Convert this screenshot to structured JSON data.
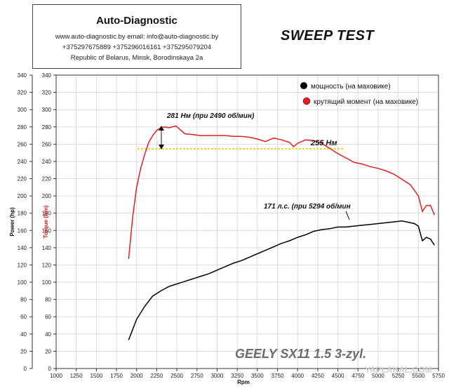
{
  "header": {
    "company": "Auto-Diagnostic",
    "contacts": "www.auto-diagnostic.by     email: info@auto-diagnostic.by",
    "phones": "+375297675889  +375296016161  +375295079204",
    "address": "Republic of Belarus, Minsk, Borodinskaya 2a"
  },
  "test_title": "SWEEP TEST",
  "car_title": "GEELY SX11  1.5 3-zyl.",
  "watermark": "YAPLAKAL.COM",
  "chart_data": {
    "type": "line",
    "xlabel": "Rpm",
    "ylabel_left": "Power (hp)",
    "ylabel_right": "Torque (Nm)",
    "xlim": [
      1000,
      5750
    ],
    "ylim": [
      0,
      340
    ],
    "x_ticks": [
      1000,
      1250,
      1500,
      1750,
      2000,
      2250,
      2500,
      2750,
      3000,
      3250,
      3500,
      3750,
      4000,
      4250,
      4500,
      4750,
      5000,
      5250,
      5500,
      5750
    ],
    "y_ticks": [
      0,
      20,
      40,
      60,
      80,
      100,
      120,
      140,
      160,
      180,
      200,
      220,
      240,
      260,
      280,
      300,
      320,
      340
    ],
    "grid": true,
    "legend_position": "top-right",
    "series": [
      {
        "name": "мощность (на маховике)",
        "color": "#000000",
        "x": [
          1900,
          1950,
          2000,
          2100,
          2200,
          2300,
          2400,
          2500,
          2600,
          2700,
          2800,
          2900,
          3000,
          3100,
          3200,
          3300,
          3400,
          3500,
          3600,
          3700,
          3800,
          3900,
          4000,
          4100,
          4200,
          4300,
          4400,
          4500,
          4600,
          4700,
          4800,
          4900,
          5000,
          5100,
          5200,
          5294,
          5350,
          5450,
          5500,
          5550,
          5600,
          5650,
          5700
        ],
        "y": [
          33,
          45,
          57,
          72,
          84,
          90,
          95,
          98,
          101,
          104,
          107,
          110,
          114,
          118,
          122,
          125,
          129,
          133,
          137,
          141,
          145,
          148,
          152,
          155,
          159,
          161,
          162,
          164,
          164,
          165,
          166,
          167,
          168,
          169,
          170,
          171,
          170,
          168,
          165,
          148,
          152,
          150,
          143
        ]
      },
      {
        "name": "крутящий момент (на маховике)",
        "color": "#e02020",
        "x": [
          1900,
          1950,
          2000,
          2050,
          2100,
          2150,
          2200,
          2250,
          2300,
          2350,
          2400,
          2490,
          2550,
          2600,
          2700,
          2800,
          2900,
          3000,
          3100,
          3200,
          3300,
          3400,
          3500,
          3600,
          3700,
          3800,
          3900,
          3950,
          4000,
          4100,
          4200,
          4300,
          4400,
          4500,
          4600,
          4700,
          4800,
          4900,
          5000,
          5100,
          5200,
          5300,
          5400,
          5500,
          5550,
          5600,
          5650,
          5700
        ],
        "y": [
          127,
          175,
          210,
          232,
          248,
          262,
          270,
          276,
          279,
          280,
          279,
          281,
          276,
          272,
          271,
          270,
          270,
          270,
          270,
          269,
          269,
          268,
          266,
          263,
          267,
          265,
          262,
          257,
          261,
          265,
          264,
          261,
          255,
          249,
          244,
          239,
          237,
          234,
          232,
          229,
          225,
          219,
          213,
          200,
          182,
          189,
          189,
          178
        ]
      }
    ],
    "annotations": [
      {
        "text": "281 Нм (при 2490 об/мин)"
      },
      {
        "text": "255 Нм"
      },
      {
        "text": "171 л.с. (при 5294 об/мин"
      }
    ]
  }
}
